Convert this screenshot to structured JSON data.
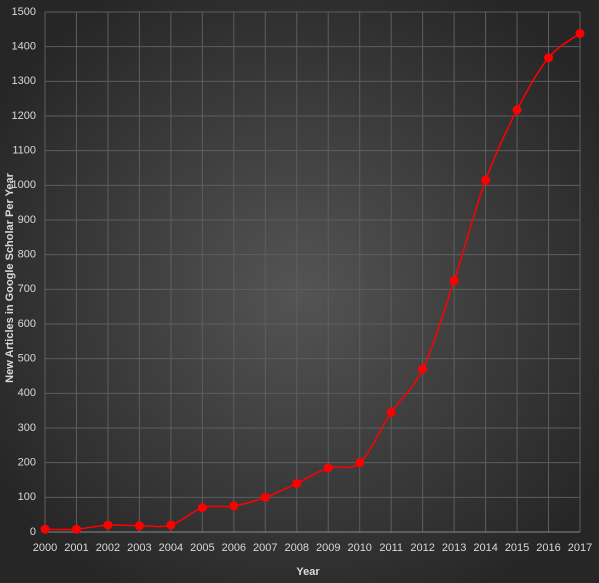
{
  "chart_data": {
    "type": "line",
    "x_label": "Year",
    "y_label": "New Articles in Google Scholar Per Year",
    "x": [
      2000,
      2001,
      2002,
      2003,
      2004,
      2005,
      2006,
      2007,
      2008,
      2009,
      2010,
      2011,
      2012,
      2013,
      2014,
      2015,
      2016,
      2017
    ],
    "series": [
      {
        "color": "#ff0000",
        "values": [
          8,
          8,
          20,
          18,
          20,
          70,
          75,
          100,
          140,
          185,
          200,
          345,
          470,
          725,
          1015,
          1218,
          1368,
          1438
        ]
      }
    ],
    "xlim": [
      2000,
      2017
    ],
    "xticks": [
      2000,
      2001,
      2002,
      2003,
      2004,
      2005,
      2006,
      2007,
      2008,
      2009,
      2010,
      2011,
      2012,
      2013,
      2014,
      2015,
      2016,
      2017
    ],
    "ylim": [
      0,
      1500
    ],
    "yticks": [
      0,
      100,
      200,
      300,
      400,
      500,
      600,
      700,
      800,
      900,
      1000,
      1100,
      1200,
      1300,
      1400,
      1500
    ],
    "grid": true,
    "smooth": true
  }
}
